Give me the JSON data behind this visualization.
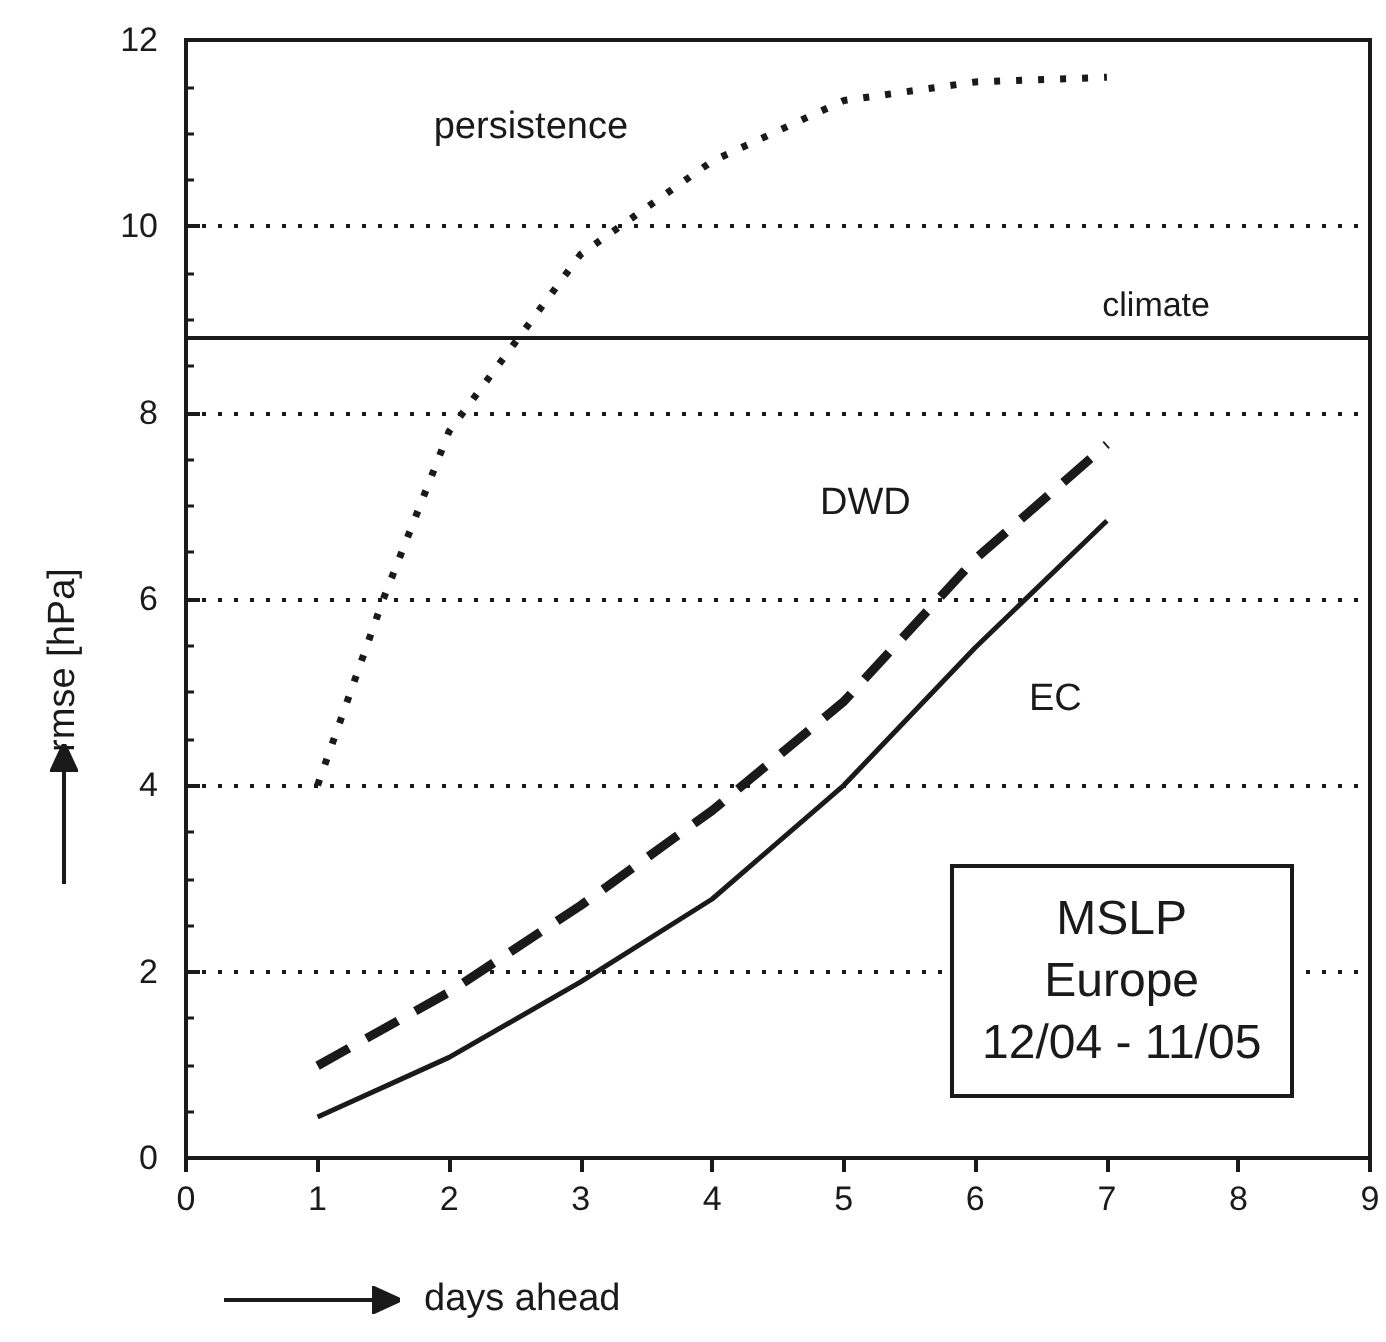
{
  "chart_data": {
    "type": "line",
    "xlabel": "days ahead",
    "ylabel": "rmse [hPa]",
    "x": [
      1,
      2,
      3,
      4,
      5,
      6,
      7
    ],
    "series": [
      {
        "name": "persistence",
        "color": "#1a1a1a",
        "line_style": "dotted",
        "x": [
          1,
          1.5,
          2,
          2.5,
          3,
          4,
          5,
          6,
          7
        ],
        "values": [
          4.0,
          6.0,
          7.8,
          8.75,
          9.7,
          10.7,
          11.35,
          11.55,
          11.6
        ]
      },
      {
        "name": "DWD",
        "color": "#1a1a1a",
        "line_style": "dashed",
        "values": [
          0.99,
          1.78,
          2.71,
          3.73,
          4.9,
          6.43,
          7.66
        ]
      },
      {
        "name": "EC",
        "color": "#1a1a1a",
        "line_style": "solid",
        "values": [
          0.44,
          1.08,
          1.89,
          2.78,
          4.0,
          5.48,
          6.84
        ]
      }
    ],
    "xlim": [
      0,
      9
    ],
    "xticks": [
      0,
      1,
      2,
      3,
      4,
      5,
      6,
      7,
      8,
      9
    ],
    "ylim": [
      0,
      12
    ],
    "yticks": [
      0,
      2,
      4,
      6,
      8,
      10,
      12
    ],
    "grid": "y",
    "ref_lines": [
      {
        "axis": "y",
        "value": 8.8,
        "label": "climate",
        "color": "#1a1a1a",
        "line_style": "solid"
      }
    ],
    "annotations": [
      "MSLP\nEurope\n12/04 - 11/05"
    ]
  }
}
